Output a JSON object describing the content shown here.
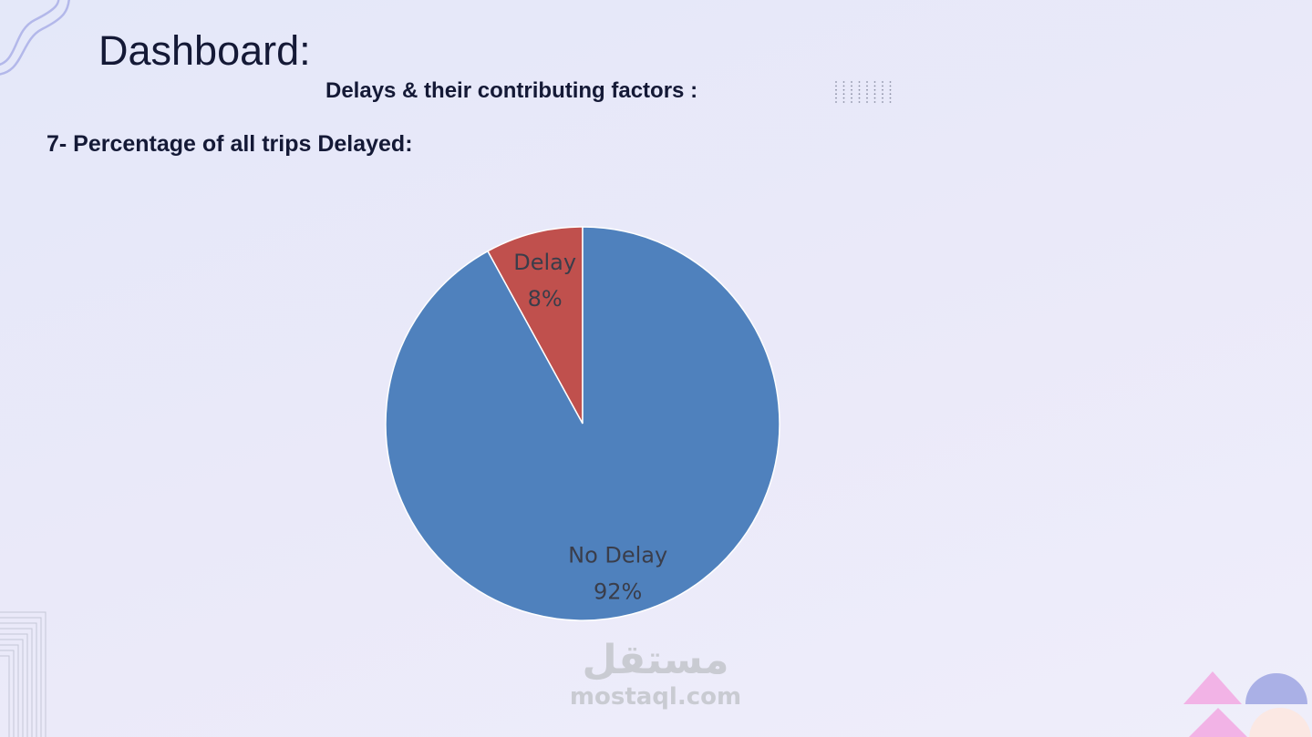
{
  "page": {
    "title": "Dashboard:",
    "subtitle": "Delays & their contributing factors :",
    "section_title": "7- Percentage of all trips Delayed:"
  },
  "chart_data": {
    "type": "pie",
    "slices": [
      {
        "label": "Delay",
        "value": 8,
        "value_label": "8%",
        "color": "#c0504d"
      },
      {
        "label": "No Delay",
        "value": 92,
        "value_label": "92%",
        "color": "#4f81bd"
      }
    ],
    "start_angle": "12 o'clock",
    "direction": "counter-clockwise",
    "legend": "none",
    "data_labels": "inside"
  },
  "watermark": {
    "arabic": "مستقل",
    "latin": "mostaql.com"
  },
  "colors": {
    "background": "#e8eafa",
    "text": "#141936",
    "deco_blue": "#aab0e6",
    "deco_pink": "#f2b3e6"
  }
}
